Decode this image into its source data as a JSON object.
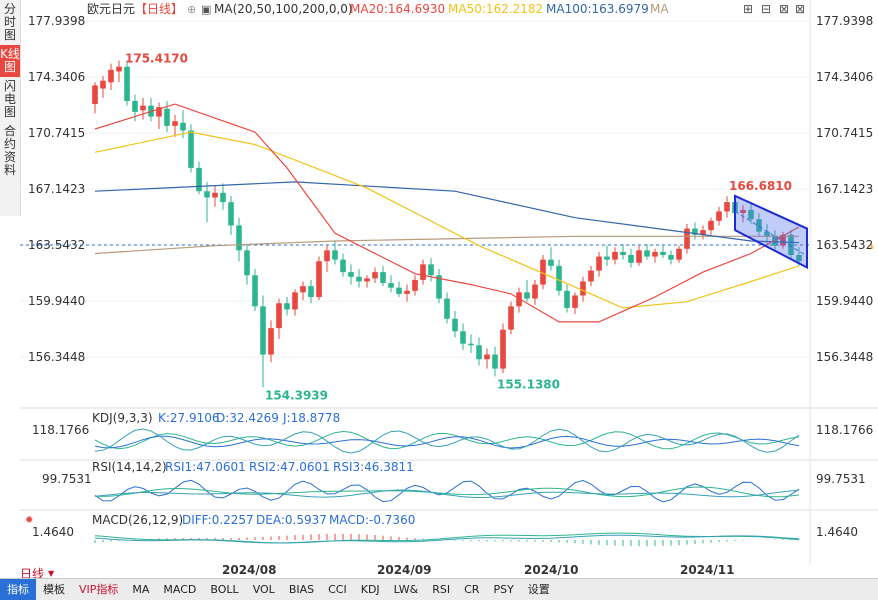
{
  "sidebar": {
    "tabs": [
      {
        "label": "分时图",
        "active": false
      },
      {
        "label": "K线图",
        "active": true
      },
      {
        "label": "闪电图",
        "active": false
      },
      {
        "label": "合约资料",
        "active": false
      }
    ]
  },
  "header": {
    "symbol": "欧元日元",
    "period_tag": "【日线】",
    "ma_legend": "MA(20,50,100,200,0,0)",
    "ma20": "MA20:164.6930",
    "ma50": "MA50:162.2182",
    "ma100": "MA100:163.6979",
    "ma_more": "MA"
  },
  "colors": {
    "up": "#e8483f",
    "down": "#2db58f",
    "ma20": "#e8483f",
    "ma50": "#f0c419",
    "ma100": "#3366aa",
    "ma200": "#b89a7a",
    "channel": "#1d2bd6",
    "price_line": "#2a6fd6"
  },
  "price_axis": [
    "177.9398",
    "174.3406",
    "170.7415",
    "167.1423",
    "163.5432",
    "159.9440",
    "156.3448"
  ],
  "current_price": "163.5432",
  "annotations": {
    "high1": "175.4170",
    "low1": "154.3939",
    "low2": "155.1380",
    "high2": "166.6810"
  },
  "kdj": {
    "title": "KDJ(9,3,3)",
    "k": "K:27.9106",
    "d": "D:32.4269",
    "j": "J:18.8778",
    "axis": "118.1766"
  },
  "rsi": {
    "title": "RSI(14,14,2)",
    "rsi1": "RSI1:47.0601",
    "rsi2": "RSI2:47.0601",
    "rsi3": "RSI3:46.3811",
    "axis_left": "99.7531",
    "axis_right": "99.7531"
  },
  "macd": {
    "title": "MACD(26,12,9)",
    "diff": "DIFF:0.2257",
    "dea": "DEA:0.5937",
    "macd": "MACD:-0.7360",
    "axis": "1.4640"
  },
  "date_labels": [
    "2024/08",
    "2024/09",
    "2024/10",
    "2024/11"
  ],
  "period_selector": "日线",
  "toolbar": [
    "指标",
    "模板",
    "VIP指标",
    "MA",
    "MACD",
    "BOLL",
    "VOL",
    "BIAS",
    "CCI",
    "KDJ",
    "LW&",
    "RSI",
    "CR",
    "PSY",
    "设置"
  ],
  "chart_data": {
    "type": "candlestick",
    "title": "欧元日元",
    "ylim": [
      153.0,
      178.5
    ],
    "y_ticks": [
      177.9398,
      174.3406,
      170.7415,
      167.1423,
      163.5432,
      159.944,
      156.3448
    ],
    "x_labels": [
      "2024/08",
      "2024/09",
      "2024/10",
      "2024/11"
    ],
    "series_names": [
      "MA20",
      "MA50",
      "MA100",
      "MA200"
    ],
    "candles": [
      [
        172.6,
        174.0,
        172.0,
        173.8
      ],
      [
        173.6,
        174.4,
        173.0,
        174.1
      ],
      [
        174.0,
        175.2,
        173.5,
        174.8
      ],
      [
        174.7,
        175.4,
        174.0,
        175.0
      ],
      [
        175.0,
        175.4,
        172.5,
        172.8
      ],
      [
        172.8,
        173.2,
        171.5,
        172.1
      ],
      [
        172.2,
        173.0,
        171.6,
        172.5
      ],
      [
        172.5,
        173.0,
        171.5,
        171.8
      ],
      [
        171.8,
        172.7,
        171.0,
        172.4
      ],
      [
        172.3,
        172.8,
        170.8,
        171.2
      ],
      [
        171.2,
        171.9,
        170.5,
        171.5
      ],
      [
        171.4,
        172.2,
        170.4,
        170.9
      ],
      [
        170.9,
        171.3,
        168.2,
        168.5
      ],
      [
        168.5,
        168.9,
        166.8,
        167.0
      ],
      [
        167.0,
        167.6,
        165.0,
        166.6
      ],
      [
        166.6,
        167.4,
        166.0,
        166.9
      ],
      [
        166.9,
        167.5,
        165.8,
        166.3
      ],
      [
        166.3,
        166.7,
        164.2,
        164.8
      ],
      [
        164.8,
        165.3,
        162.5,
        163.2
      ],
      [
        163.2,
        163.6,
        161.0,
        161.6
      ],
      [
        161.6,
        162.0,
        159.3,
        159.6
      ],
      [
        159.6,
        160.3,
        154.4,
        156.5
      ],
      [
        156.5,
        158.7,
        156.0,
        158.2
      ],
      [
        158.2,
        160.1,
        157.5,
        159.8
      ],
      [
        159.8,
        160.2,
        159.0,
        159.4
      ],
      [
        159.4,
        160.7,
        159.0,
        160.5
      ],
      [
        160.5,
        161.2,
        160.0,
        160.9
      ],
      [
        160.9,
        161.3,
        159.8,
        160.2
      ],
      [
        160.2,
        162.8,
        160.0,
        162.5
      ],
      [
        162.5,
        163.5,
        161.8,
        163.2
      ],
      [
        163.2,
        163.8,
        162.3,
        162.6
      ],
      [
        162.6,
        163.0,
        161.5,
        161.8
      ],
      [
        161.8,
        162.3,
        161.0,
        161.5
      ],
      [
        161.5,
        162.0,
        160.8,
        161.2
      ],
      [
        161.2,
        161.6,
        160.8,
        161.4
      ],
      [
        161.4,
        162.1,
        161.1,
        161.8
      ],
      [
        161.8,
        162.2,
        160.9,
        161.1
      ],
      [
        161.1,
        161.6,
        160.5,
        160.8
      ],
      [
        160.8,
        161.2,
        160.2,
        160.4
      ],
      [
        160.4,
        161.0,
        159.9,
        160.6
      ],
      [
        160.6,
        161.6,
        160.3,
        161.3
      ],
      [
        161.3,
        162.6,
        161.0,
        162.3
      ],
      [
        162.3,
        162.7,
        161.2,
        161.6
      ],
      [
        161.6,
        162.0,
        159.8,
        160.1
      ],
      [
        160.1,
        160.5,
        158.5,
        158.8
      ],
      [
        158.8,
        159.3,
        157.6,
        158.0
      ],
      [
        158.0,
        158.5,
        156.8,
        157.2
      ],
      [
        157.2,
        157.8,
        156.6,
        157.1
      ],
      [
        157.1,
        157.6,
        155.8,
        156.2
      ],
      [
        156.2,
        156.9,
        155.6,
        156.5
      ],
      [
        156.5,
        157.0,
        155.1,
        155.6
      ],
      [
        155.6,
        158.5,
        155.3,
        158.1
      ],
      [
        158.1,
        159.9,
        157.8,
        159.6
      ],
      [
        159.6,
        160.8,
        159.2,
        160.5
      ],
      [
        160.5,
        161.3,
        159.9,
        160.1
      ],
      [
        160.1,
        161.3,
        159.7,
        161.0
      ],
      [
        161.0,
        162.9,
        160.7,
        162.6
      ],
      [
        162.6,
        163.4,
        161.9,
        162.2
      ],
      [
        162.2,
        162.6,
        160.3,
        160.6
      ],
      [
        160.6,
        161.0,
        159.2,
        159.5
      ],
      [
        159.5,
        160.5,
        159.1,
        160.3
      ],
      [
        160.3,
        161.5,
        159.9,
        161.2
      ],
      [
        161.2,
        162.2,
        160.9,
        161.9
      ],
      [
        161.9,
        163.1,
        161.5,
        162.8
      ],
      [
        162.8,
        163.5,
        162.2,
        162.6
      ],
      [
        162.6,
        163.4,
        162.3,
        163.1
      ],
      [
        163.1,
        163.6,
        162.6,
        162.9
      ],
      [
        162.9,
        163.3,
        162.1,
        162.4
      ],
      [
        162.4,
        163.5,
        162.2,
        163.2
      ],
      [
        163.2,
        163.6,
        162.6,
        162.8
      ],
      [
        162.8,
        163.3,
        162.4,
        163.1
      ],
      [
        163.1,
        163.5,
        162.7,
        162.9
      ],
      [
        162.9,
        163.2,
        162.3,
        162.6
      ],
      [
        162.6,
        163.5,
        162.4,
        163.3
      ],
      [
        163.3,
        164.9,
        163.0,
        164.6
      ],
      [
        164.6,
        165.0,
        163.9,
        164.2
      ],
      [
        164.2,
        164.8,
        163.9,
        164.5
      ],
      [
        164.5,
        165.3,
        164.2,
        165.1
      ],
      [
        165.1,
        166.0,
        164.8,
        165.7
      ],
      [
        165.7,
        166.68,
        165.3,
        166.3
      ],
      [
        166.3,
        166.6,
        165.3,
        165.6
      ],
      [
        165.6,
        166.1,
        165.0,
        165.8
      ],
      [
        165.8,
        166.2,
        164.9,
        165.2
      ],
      [
        165.2,
        165.6,
        164.1,
        164.4
      ],
      [
        164.4,
        164.9,
        163.6,
        164.1
      ],
      [
        164.1,
        164.5,
        163.2,
        163.5
      ],
      [
        163.5,
        164.4,
        163.3,
        164.2
      ],
      [
        164.2,
        164.5,
        162.6,
        162.9
      ],
      [
        162.9,
        163.4,
        162.2,
        162.5
      ]
    ],
    "ma20": [
      [
        0,
        171.0
      ],
      [
        10,
        172.6
      ],
      [
        20,
        170.8
      ],
      [
        24,
        168.5
      ],
      [
        30,
        164.3
      ],
      [
        40,
        161.7
      ],
      [
        47,
        161.0
      ],
      [
        52,
        160.4
      ],
      [
        58,
        158.6
      ],
      [
        63,
        158.6
      ],
      [
        70,
        160.2
      ],
      [
        76,
        161.8
      ],
      [
        82,
        163.0
      ],
      [
        88,
        164.7
      ]
    ],
    "ma50": [
      [
        0,
        169.5
      ],
      [
        12,
        170.8
      ],
      [
        20,
        170.0
      ],
      [
        34,
        167.2
      ],
      [
        48,
        163.5
      ],
      [
        62,
        160.4
      ],
      [
        66,
        159.5
      ],
      [
        74,
        159.9
      ],
      [
        82,
        161.2
      ],
      [
        88,
        162.2
      ]
    ],
    "ma100": [
      [
        0,
        167.0
      ],
      [
        25,
        167.6
      ],
      [
        45,
        167.0
      ],
      [
        60,
        165.3
      ],
      [
        82,
        163.8
      ],
      [
        88,
        163.7
      ]
    ],
    "ma200": [
      [
        0,
        163.0
      ],
      [
        15,
        163.5
      ],
      [
        30,
        163.8
      ],
      [
        60,
        164.1
      ],
      [
        88,
        164.1
      ]
    ],
    "channel": {
      "upper": [
        [
          80,
          166.7
        ],
        [
          89,
          164.6
        ]
      ],
      "lower": [
        [
          80,
          164.5
        ],
        [
          89,
          162.1
        ]
      ]
    }
  }
}
